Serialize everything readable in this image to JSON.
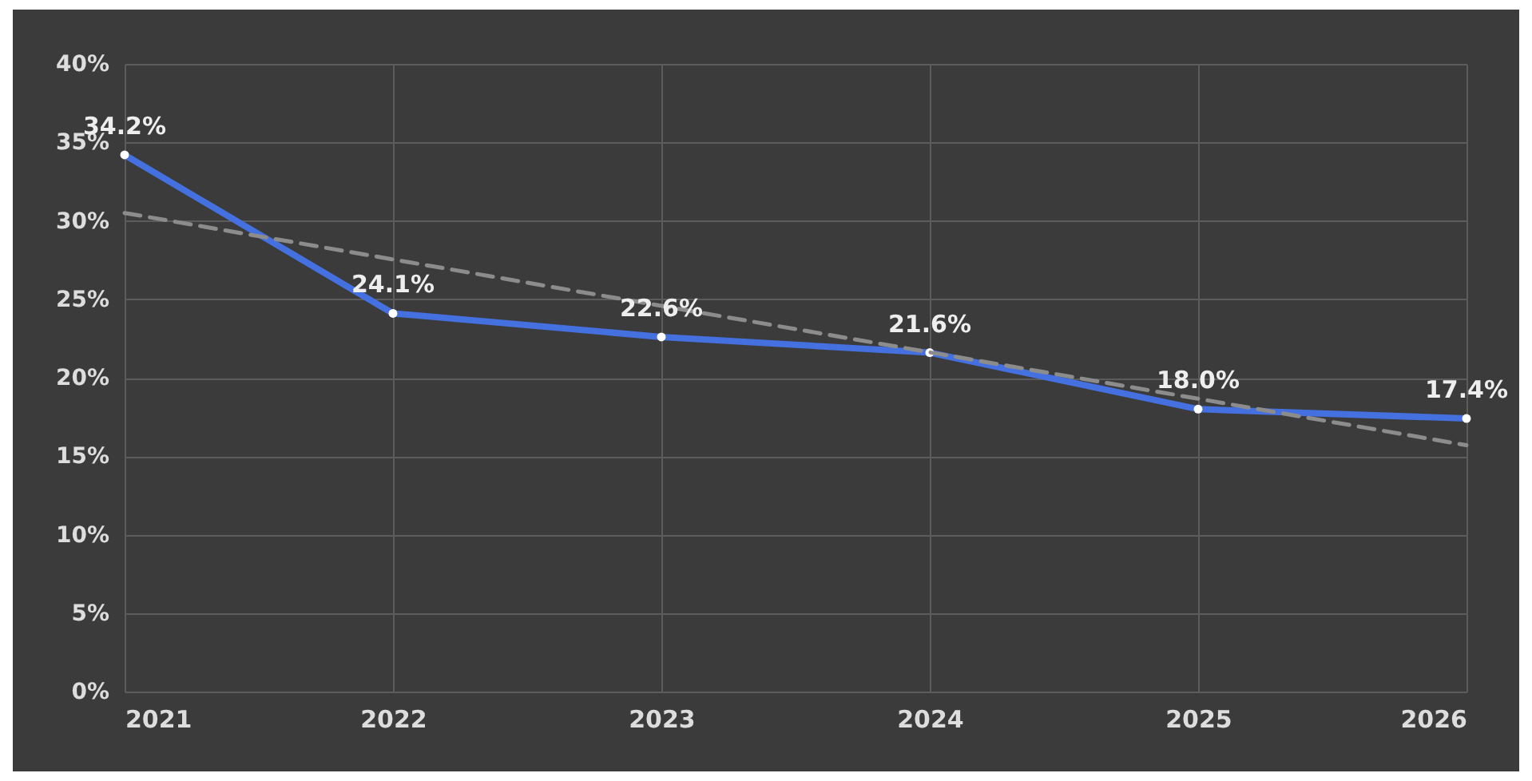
{
  "chart_data": {
    "type": "line",
    "x": [
      2021,
      2022,
      2023,
      2024,
      2025,
      2026
    ],
    "xlim": [
      2021,
      2026
    ],
    "xticks": [
      2021,
      2022,
      2023,
      2024,
      2025,
      2026
    ],
    "ylim": [
      0,
      40
    ],
    "yticks": [
      {
        "value": 0,
        "label": "0%"
      },
      {
        "value": 5,
        "label": "5%"
      },
      {
        "value": 10,
        "label": "10%"
      },
      {
        "value": 15,
        "label": "15%"
      },
      {
        "value": 20,
        "label": "20%"
      },
      {
        "value": 25,
        "label": "25%"
      },
      {
        "value": 30,
        "label": "30%"
      },
      {
        "value": 35,
        "label": "35%"
      },
      {
        "value": 40,
        "label": "40%"
      }
    ],
    "grid": true,
    "marker": "circle",
    "series": [
      {
        "color": "#4470e0",
        "values": [
          34.2,
          24.1,
          22.6,
          21.6,
          18.0,
          17.4
        ],
        "value_labels": [
          "34.2%",
          "24.1%",
          "22.6%",
          "21.6%",
          "18.0%",
          "17.4%"
        ]
      },
      {
        "type": "line",
        "x": [
          2021,
          2026
        ],
        "color": "#8c8c8c",
        "line_style": "dashed",
        "marker": "none",
        "values": [
          30.5,
          15.7
        ]
      }
    ]
  }
}
